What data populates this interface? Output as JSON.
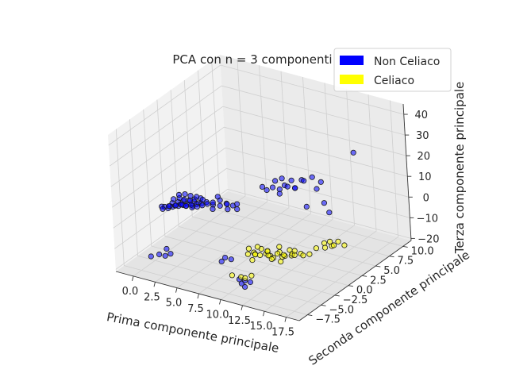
{
  "chart_data": {
    "type": "scatter",
    "projection": "3d",
    "title": "PCA con n = 3 componenti",
    "xlabel": "Prima componente principale",
    "ylabel": "Seconda componente principale",
    "zlabel": "Terza componente principale",
    "xlim": [
      -2,
      19
    ],
    "ylim": [
      -9,
      11.5
    ],
    "zlim": [
      -21,
      45
    ],
    "xticks": [
      "0.0",
      "2.5",
      "5.0",
      "7.5",
      "10.0",
      "12.5",
      "15.0",
      "17.5"
    ],
    "yticks": [
      "−7.5",
      "−5.0",
      "−2.5",
      "0.0",
      "2.5",
      "5.0",
      "7.5",
      "10.0"
    ],
    "zticks": [
      "−20",
      "−10",
      "0",
      "10",
      "20",
      "30",
      "40"
    ],
    "xtick_values": [
      0,
      2.5,
      5,
      7.5,
      10,
      12.5,
      15,
      17.5
    ],
    "ytick_values": [
      -7.5,
      -5,
      -2.5,
      0,
      2.5,
      5,
      7.5,
      10
    ],
    "ztick_values": [
      -20,
      -10,
      0,
      10,
      20,
      30,
      40
    ],
    "grid": true,
    "legend_position": "top-right",
    "series": [
      {
        "name": "Non Celiaco",
        "color": "#0000ff",
        "points": [
          [
            0.2,
            -2.5,
            -0.3
          ],
          [
            0.6,
            -2.3,
            0.5
          ],
          [
            1.1,
            -2.0,
            0.9
          ],
          [
            1.5,
            -1.8,
            1.4
          ],
          [
            1.9,
            -1.5,
            1.8
          ],
          [
            2.3,
            -1.3,
            1.1
          ],
          [
            0.4,
            -2.0,
            1.6
          ],
          [
            0.9,
            -1.7,
            2.1
          ],
          [
            1.3,
            -1.4,
            2.5
          ],
          [
            1.8,
            -1.2,
            2.9
          ],
          [
            2.2,
            -0.9,
            2.2
          ],
          [
            2.6,
            -0.7,
            1.5
          ],
          [
            0.0,
            -2.8,
            0.8
          ],
          [
            0.5,
            -2.6,
            1.3
          ],
          [
            1.0,
            -2.4,
            1.7
          ],
          [
            1.4,
            -2.1,
            2.3
          ],
          [
            1.9,
            -1.9,
            1.6
          ],
          [
            2.4,
            -1.6,
            0.9
          ],
          [
            0.3,
            -1.6,
            2.6
          ],
          [
            0.8,
            -1.3,
            3.1
          ],
          [
            1.2,
            -1.1,
            2.4
          ],
          [
            1.7,
            -0.8,
            1.9
          ],
          [
            2.1,
            -0.6,
            2.7
          ],
          [
            2.6,
            -0.3,
            3.2
          ],
          [
            0.1,
            -2.2,
            0.1
          ],
          [
            0.7,
            -1.9,
            0.6
          ],
          [
            1.2,
            -1.6,
            1.0
          ],
          [
            1.6,
            -1.4,
            0.4
          ],
          [
            2.0,
            -1.1,
            0.8
          ],
          [
            2.5,
            -0.9,
            1.3
          ],
          [
            3.0,
            -0.8,
            2.0
          ],
          [
            3.4,
            -0.5,
            2.6
          ],
          [
            2.8,
            -1.3,
            1.2
          ],
          [
            3.2,
            -1.0,
            1.7
          ],
          [
            3.6,
            -0.7,
            2.3
          ],
          [
            2.9,
            -0.4,
            3.0
          ],
          [
            0.5,
            -0.9,
            3.6
          ],
          [
            1.0,
            -0.6,
            3.9
          ],
          [
            1.5,
            -0.4,
            3.3
          ],
          [
            2.0,
            -0.1,
            2.8
          ],
          [
            -0.2,
            -3.0,
            1.1
          ],
          [
            -0.3,
            -2.7,
            -0.8
          ],
          [
            4.2,
            -0.6,
            2.4
          ],
          [
            4.8,
            -0.3,
            2.0
          ],
          [
            5.3,
            0.1,
            2.9
          ],
          [
            5.9,
            0.3,
            2.2
          ],
          [
            4.5,
            0.2,
            3.4
          ],
          [
            5.1,
            0.5,
            1.6
          ],
          [
            3.8,
            0.0,
            1.9
          ],
          [
            4.4,
            -1.0,
            1.3
          ],
          [
            5.6,
            -0.2,
            1.0
          ],
          [
            6.2,
            0.6,
            2.7
          ],
          [
            6.5,
            0.1,
            1.5
          ],
          [
            4.0,
            0.6,
            3.8
          ],
          [
            8.5,
            2.5,
            8.5
          ],
          [
            9.0,
            2.8,
            9.8
          ],
          [
            9.6,
            3.1,
            9.0
          ],
          [
            10.0,
            3.4,
            10.8
          ],
          [
            10.6,
            3.0,
            11.6
          ],
          [
            8.8,
            3.6,
            11.2
          ],
          [
            9.4,
            3.9,
            12.5
          ],
          [
            10.3,
            4.2,
            12.0
          ],
          [
            11.0,
            3.7,
            10.0
          ],
          [
            8.2,
            2.2,
            10.3
          ],
          [
            9.9,
            2.6,
            8.1
          ],
          [
            10.8,
            4.0,
            9.3
          ],
          [
            11.3,
            4.5,
            12.8
          ],
          [
            12.0,
            3.8,
            14.5
          ],
          [
            12.6,
            4.4,
            15.8
          ],
          [
            13.2,
            5.0,
            13.0
          ],
          [
            12.4,
            5.4,
            8.0
          ],
          [
            12.9,
            5.8,
            1.0
          ],
          [
            13.3,
            6.0,
            -3.5
          ],
          [
            11.5,
            4.8,
            -0.5
          ],
          [
            18.5,
            3.0,
            37.0
          ],
          [
            1.5,
            -6.5,
            -13.5
          ],
          [
            2.0,
            -6.2,
            -14.2
          ],
          [
            2.5,
            -6.0,
            -13.0
          ],
          [
            1.8,
            -5.6,
            -12.2
          ],
          [
            0.8,
            -6.9,
            -14.5
          ],
          [
            6.5,
            -2.5,
            -17.0
          ],
          [
            7.0,
            -2.2,
            -17.8
          ],
          [
            6.2,
            -2.7,
            -18.8
          ],
          [
            9.0,
            -4.0,
            -21.8
          ],
          [
            9.5,
            -3.8,
            -22.3
          ],
          [
            10.0,
            -3.6,
            -22.8
          ],
          [
            9.3,
            -4.1,
            -23.3
          ],
          [
            9.8,
            -4.3,
            -24.0
          ]
        ]
      },
      {
        "name": "Celiaco",
        "color": "#ffff00",
        "points": [
          [
            11.5,
            -6.0,
            -3.0
          ],
          [
            12.0,
            -5.7,
            -2.2
          ],
          [
            12.5,
            -5.4,
            -3.5
          ],
          [
            13.0,
            -5.1,
            -2.8
          ],
          [
            11.8,
            -5.2,
            -4.2
          ],
          [
            12.3,
            -4.8,
            -1.8
          ],
          [
            12.8,
            -4.5,
            -3.2
          ],
          [
            13.3,
            -4.8,
            -4.0
          ],
          [
            11.3,
            -5.5,
            -1.5
          ],
          [
            12.1,
            -6.2,
            -4.8
          ],
          [
            13.6,
            -5.6,
            -2.0
          ],
          [
            12.6,
            -6.4,
            -1.2
          ],
          [
            14.0,
            -4.2,
            -2.6
          ],
          [
            14.5,
            -4.5,
            -3.8
          ],
          [
            15.0,
            -4.8,
            -2.2
          ],
          [
            14.2,
            -3.8,
            -4.5
          ],
          [
            14.8,
            -3.6,
            -1.8
          ],
          [
            15.3,
            -4.1,
            -3.0
          ],
          [
            14.6,
            -5.0,
            -5.0
          ],
          [
            15.6,
            -4.4,
            -1.2
          ],
          [
            13.8,
            -3.9,
            -0.8
          ],
          [
            15.2,
            -3.4,
            -4.2
          ],
          [
            14.4,
            -5.2,
            -1.0
          ],
          [
            13.5,
            -4.6,
            -5.2
          ],
          [
            16.0,
            -3.5,
            -2.4
          ],
          [
            15.8,
            -2.8,
            -4.8
          ],
          [
            14.9,
            -2.9,
            -3.4
          ],
          [
            13.9,
            -5.5,
            -3.6
          ],
          [
            11.6,
            -4.4,
            -2.4
          ],
          [
            12.4,
            -3.9,
            -4.4
          ],
          [
            17.5,
            -3.0,
            1.0
          ],
          [
            18.2,
            -2.6,
            3.5
          ],
          [
            18.8,
            -2.2,
            2.0
          ],
          [
            19.3,
            -1.8,
            4.0
          ],
          [
            19.0,
            -2.8,
            5.5
          ],
          [
            18.5,
            -1.4,
            0.5
          ],
          [
            17.8,
            -1.9,
            -0.5
          ],
          [
            19.8,
            -1.5,
            2.2
          ],
          [
            17.0,
            -3.5,
            -1.5
          ],
          [
            10.5,
            -7.5,
            -11.5
          ],
          [
            11.2,
            -7.0,
            -12.5
          ],
          [
            11.8,
            -7.2,
            -12.0
          ],
          [
            12.3,
            -6.8,
            -11.0
          ]
        ]
      }
    ]
  }
}
